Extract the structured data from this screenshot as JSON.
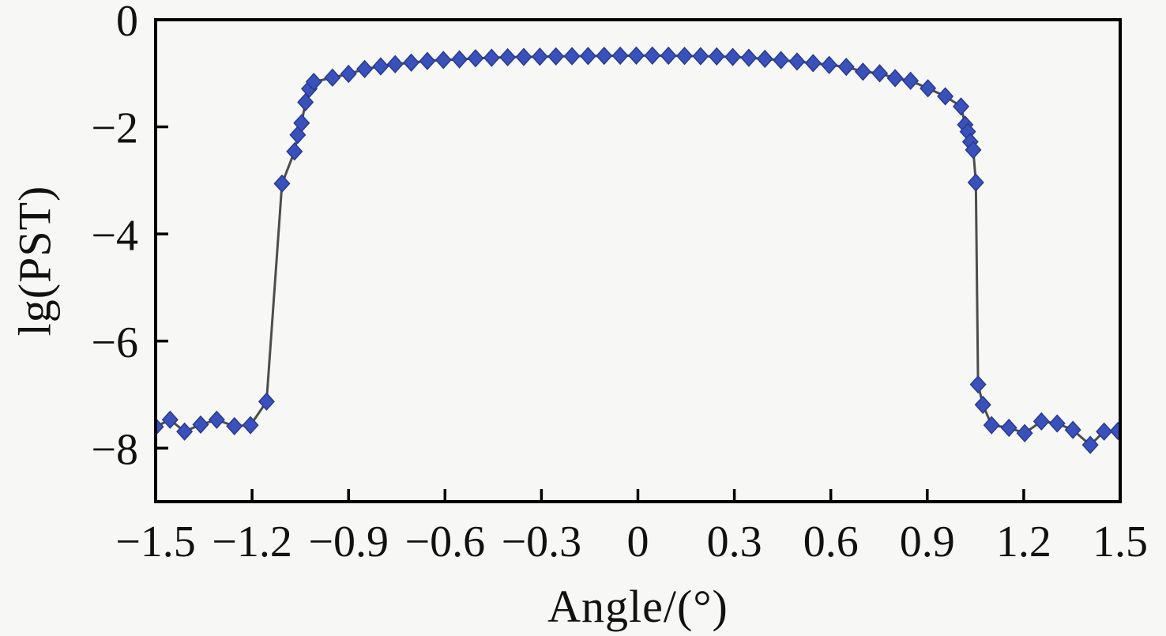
{
  "figure": {
    "background": "#f7f7f5"
  },
  "chart_data": {
    "type": "line",
    "title": "",
    "xlabel": "Angle/(°)",
    "ylabel": "lg(PST)",
    "xlim": [
      -1.5,
      1.5
    ],
    "ylim": [
      -9,
      0
    ],
    "grid": false,
    "legend": "none",
    "x_ticks": [
      -1.5,
      -1.2,
      -0.9,
      -0.6,
      -0.3,
      0,
      0.3,
      0.6,
      0.9,
      1.2,
      1.5
    ],
    "x_tick_labels": [
      "−1.5",
      "−1.2",
      "−0.9",
      "−0.6",
      "−0.3",
      "0",
      "0.3",
      "0.6",
      "0.9",
      "1.2",
      "1.5"
    ],
    "y_ticks": [
      0,
      -2,
      -4,
      -6,
      -8
    ],
    "y_tick_labels": [
      "0",
      "−2",
      "−4",
      "−6",
      "−8"
    ],
    "style": {
      "marker": "diamond",
      "marker_color": "#3a51bb",
      "marker_edge_color": "#273a8f",
      "line_color": "#4d4d4d",
      "axis_color": "#000000"
    },
    "series": [
      {
        "name": "lg(PST)",
        "points": [
          [
            -1.5,
            -7.6
          ],
          [
            -1.455,
            -7.47
          ],
          [
            -1.41,
            -7.69
          ],
          [
            -1.36,
            -7.56
          ],
          [
            -1.31,
            -7.47
          ],
          [
            -1.255,
            -7.59
          ],
          [
            -1.205,
            -7.57
          ],
          [
            -1.155,
            -7.13
          ],
          [
            -1.107,
            -3.06
          ],
          [
            -1.068,
            -2.46
          ],
          [
            -1.058,
            -2.15
          ],
          [
            -1.046,
            -1.93
          ],
          [
            -1.034,
            -1.54
          ],
          [
            -1.022,
            -1.29
          ],
          [
            -1.008,
            -1.16
          ],
          [
            -0.95,
            -1.08
          ],
          [
            -0.9,
            -1.01
          ],
          [
            -0.85,
            -0.92
          ],
          [
            -0.8,
            -0.87
          ],
          [
            -0.755,
            -0.83
          ],
          [
            -0.705,
            -0.8
          ],
          [
            -0.655,
            -0.77
          ],
          [
            -0.605,
            -0.75
          ],
          [
            -0.555,
            -0.74
          ],
          [
            -0.505,
            -0.72
          ],
          [
            -0.455,
            -0.71
          ],
          [
            -0.405,
            -0.7
          ],
          [
            -0.355,
            -0.695
          ],
          [
            -0.305,
            -0.69
          ],
          [
            -0.255,
            -0.685
          ],
          [
            -0.205,
            -0.68
          ],
          [
            -0.155,
            -0.677
          ],
          [
            -0.105,
            -0.674
          ],
          [
            -0.055,
            -0.672
          ],
          [
            -0.005,
            -0.67
          ],
          [
            0.045,
            -0.67
          ],
          [
            0.095,
            -0.672
          ],
          [
            0.145,
            -0.675
          ],
          [
            0.195,
            -0.68
          ],
          [
            0.245,
            -0.685
          ],
          [
            0.295,
            -0.695
          ],
          [
            0.345,
            -0.71
          ],
          [
            0.395,
            -0.73
          ],
          [
            0.445,
            -0.755
          ],
          [
            0.495,
            -0.78
          ],
          [
            0.545,
            -0.81
          ],
          [
            0.595,
            -0.845
          ],
          [
            0.648,
            -0.88
          ],
          [
            0.7,
            -0.97
          ],
          [
            0.752,
            -1.0
          ],
          [
            0.8,
            -1.09
          ],
          [
            0.848,
            -1.14
          ],
          [
            0.902,
            -1.28
          ],
          [
            0.956,
            -1.43
          ],
          [
            1.005,
            -1.62
          ],
          [
            1.018,
            -1.96
          ],
          [
            1.026,
            -2.09
          ],
          [
            1.034,
            -2.28
          ],
          [
            1.043,
            -2.43
          ],
          [
            1.051,
            -3.04
          ],
          [
            1.058,
            -6.81
          ],
          [
            1.073,
            -7.19
          ],
          [
            1.1,
            -7.57
          ],
          [
            1.154,
            -7.62
          ],
          [
            1.203,
            -7.72
          ],
          [
            1.255,
            -7.5
          ],
          [
            1.304,
            -7.54
          ],
          [
            1.353,
            -7.66
          ],
          [
            1.407,
            -7.94
          ],
          [
            1.45,
            -7.69
          ],
          [
            1.493,
            -7.68
          ]
        ]
      }
    ]
  }
}
